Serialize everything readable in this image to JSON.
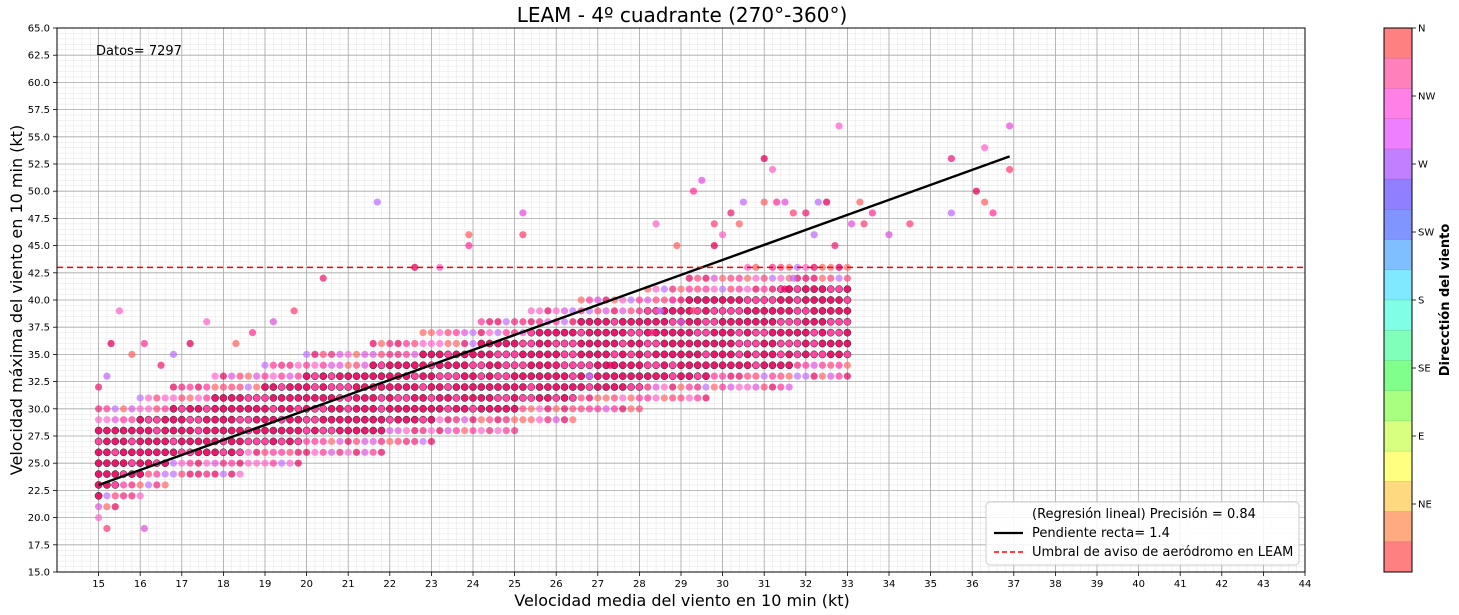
{
  "chart_data": {
    "type": "scatter",
    "title": "LEAM - 4º cuadrante (270°-360°)",
    "xlabel": "Velocidad media del viento en 10 min (kt)",
    "ylabel": "Velocidad máxima del viento en 10 min (kt)",
    "annotation": "Datos= 7297",
    "xlim": [
      14,
      44
    ],
    "ylim": [
      15,
      65
    ],
    "x_ticks": [
      15,
      16,
      17,
      18,
      19,
      20,
      21,
      22,
      23,
      24,
      25,
      26,
      27,
      28,
      29,
      30,
      31,
      32,
      33,
      34,
      35,
      36,
      37,
      38,
      39,
      40,
      41,
      42,
      43,
      44
    ],
    "y_ticks": [
      "15.0",
      "17.5",
      "20.0",
      "22.5",
      "25.0",
      "27.5",
      "30.0",
      "32.5",
      "35.0",
      "37.5",
      "40.0",
      "42.5",
      "45.0",
      "47.5",
      "50.0",
      "52.5",
      "55.0",
      "57.5",
      "60.0",
      "62.5",
      "65.0"
    ],
    "grid": true,
    "legend_position": "bottom-right",
    "legend": [
      {
        "label": "(Regresión lineal) Precisión = 0.84",
        "style": "none",
        "color": "#ffffff"
      },
      {
        "label": "Pendiente recta= 1.4",
        "style": "solid",
        "color": "#000000"
      },
      {
        "label": "Umbral de aviso de aeródromo en LEAM",
        "style": "dashed",
        "color": "#ff0000"
      }
    ],
    "regression": {
      "x": [
        15,
        36.9
      ],
      "y": [
        23.0,
        53.2
      ]
    },
    "threshold_y": 43,
    "cluster": {
      "x_from": 15,
      "x_to": 33,
      "x_step": 0.2,
      "lower": [
        20,
        23,
        23.8,
        25,
        25.8,
        27,
        27.8,
        29,
        30,
        31,
        31.8,
        33
      ],
      "upper": [
        30,
        32,
        33.5,
        35,
        36,
        37.5,
        38.5,
        40,
        41,
        42.5,
        43,
        43.5
      ]
    },
    "outliers": [
      [
        15,
        32
      ],
      [
        15.2,
        33
      ],
      [
        15.3,
        36
      ],
      [
        15.5,
        39
      ],
      [
        15.8,
        35
      ],
      [
        16.1,
        36
      ],
      [
        16.1,
        19
      ],
      [
        15.2,
        19
      ],
      [
        16.5,
        34
      ],
      [
        16.8,
        35
      ],
      [
        17.2,
        36
      ],
      [
        17.6,
        38
      ],
      [
        18.3,
        36
      ],
      [
        18.7,
        37
      ],
      [
        19.2,
        38
      ],
      [
        19.7,
        39
      ],
      [
        20.4,
        42
      ],
      [
        21.7,
        49
      ],
      [
        22.6,
        43
      ],
      [
        23.2,
        43
      ],
      [
        23.9,
        46
      ],
      [
        23.9,
        45
      ],
      [
        25.2,
        48
      ],
      [
        25.2,
        46
      ],
      [
        26.0,
        34
      ],
      [
        26.8,
        33
      ],
      [
        27.3,
        34
      ],
      [
        28.4,
        47
      ],
      [
        28.9,
        45
      ],
      [
        29.3,
        50
      ],
      [
        29.5,
        51
      ],
      [
        29.8,
        47
      ],
      [
        30.2,
        48
      ],
      [
        30.5,
        49
      ],
      [
        31.0,
        53
      ],
      [
        31.2,
        52
      ],
      [
        31.0,
        49
      ],
      [
        31.3,
        49
      ],
      [
        31.5,
        49
      ],
      [
        31.7,
        48
      ],
      [
        32.0,
        48
      ],
      [
        32.3,
        49
      ],
      [
        32.5,
        49
      ],
      [
        32.8,
        56
      ],
      [
        33.3,
        49
      ],
      [
        33.6,
        48
      ],
      [
        34.0,
        46
      ],
      [
        34.5,
        47
      ],
      [
        35.5,
        53
      ],
      [
        35.5,
        48
      ],
      [
        36.1,
        50
      ],
      [
        36.3,
        54
      ],
      [
        36.3,
        49
      ],
      [
        36.5,
        48
      ],
      [
        36.9,
        56
      ],
      [
        36.9,
        52
      ],
      [
        32.8,
        43
      ],
      [
        31.7,
        42
      ],
      [
        31.5,
        41
      ],
      [
        30.6,
        43
      ],
      [
        30.8,
        43
      ],
      [
        31.2,
        43
      ],
      [
        33.1,
        47
      ],
      [
        33.4,
        47
      ],
      [
        32.7,
        45
      ],
      [
        32.2,
        46
      ],
      [
        29.8,
        45
      ],
      [
        30.0,
        46
      ],
      [
        30.4,
        47
      ],
      [
        28.8,
        40
      ],
      [
        29.0,
        38
      ],
      [
        29.3,
        39
      ],
      [
        28.3,
        37
      ],
      [
        28.5,
        39
      ]
    ],
    "colorbar": {
      "label": "Direcctión del viento",
      "ticks": [
        "N",
        "NW",
        "W",
        "SW",
        "S",
        "SE",
        "E",
        "NE"
      ],
      "colors": [
        "#ff8080",
        "#ff80bb",
        "#ff80e6",
        "#ee80ff",
        "#c080ff",
        "#9080ff",
        "#8095ff",
        "#80bfff",
        "#80e8ff",
        "#80ffe6",
        "#80ffbb",
        "#80ff8c",
        "#a8ff80",
        "#d8ff80",
        "#ffff80",
        "#ffd980",
        "#ffaa80",
        "#ff8080"
      ]
    },
    "point_colors": [
      "#e6005c",
      "#ff3399",
      "#ee2277",
      "#ff66cc",
      "#e055e0",
      "#c070ff",
      "#ff6666",
      "#ff4477"
    ]
  }
}
